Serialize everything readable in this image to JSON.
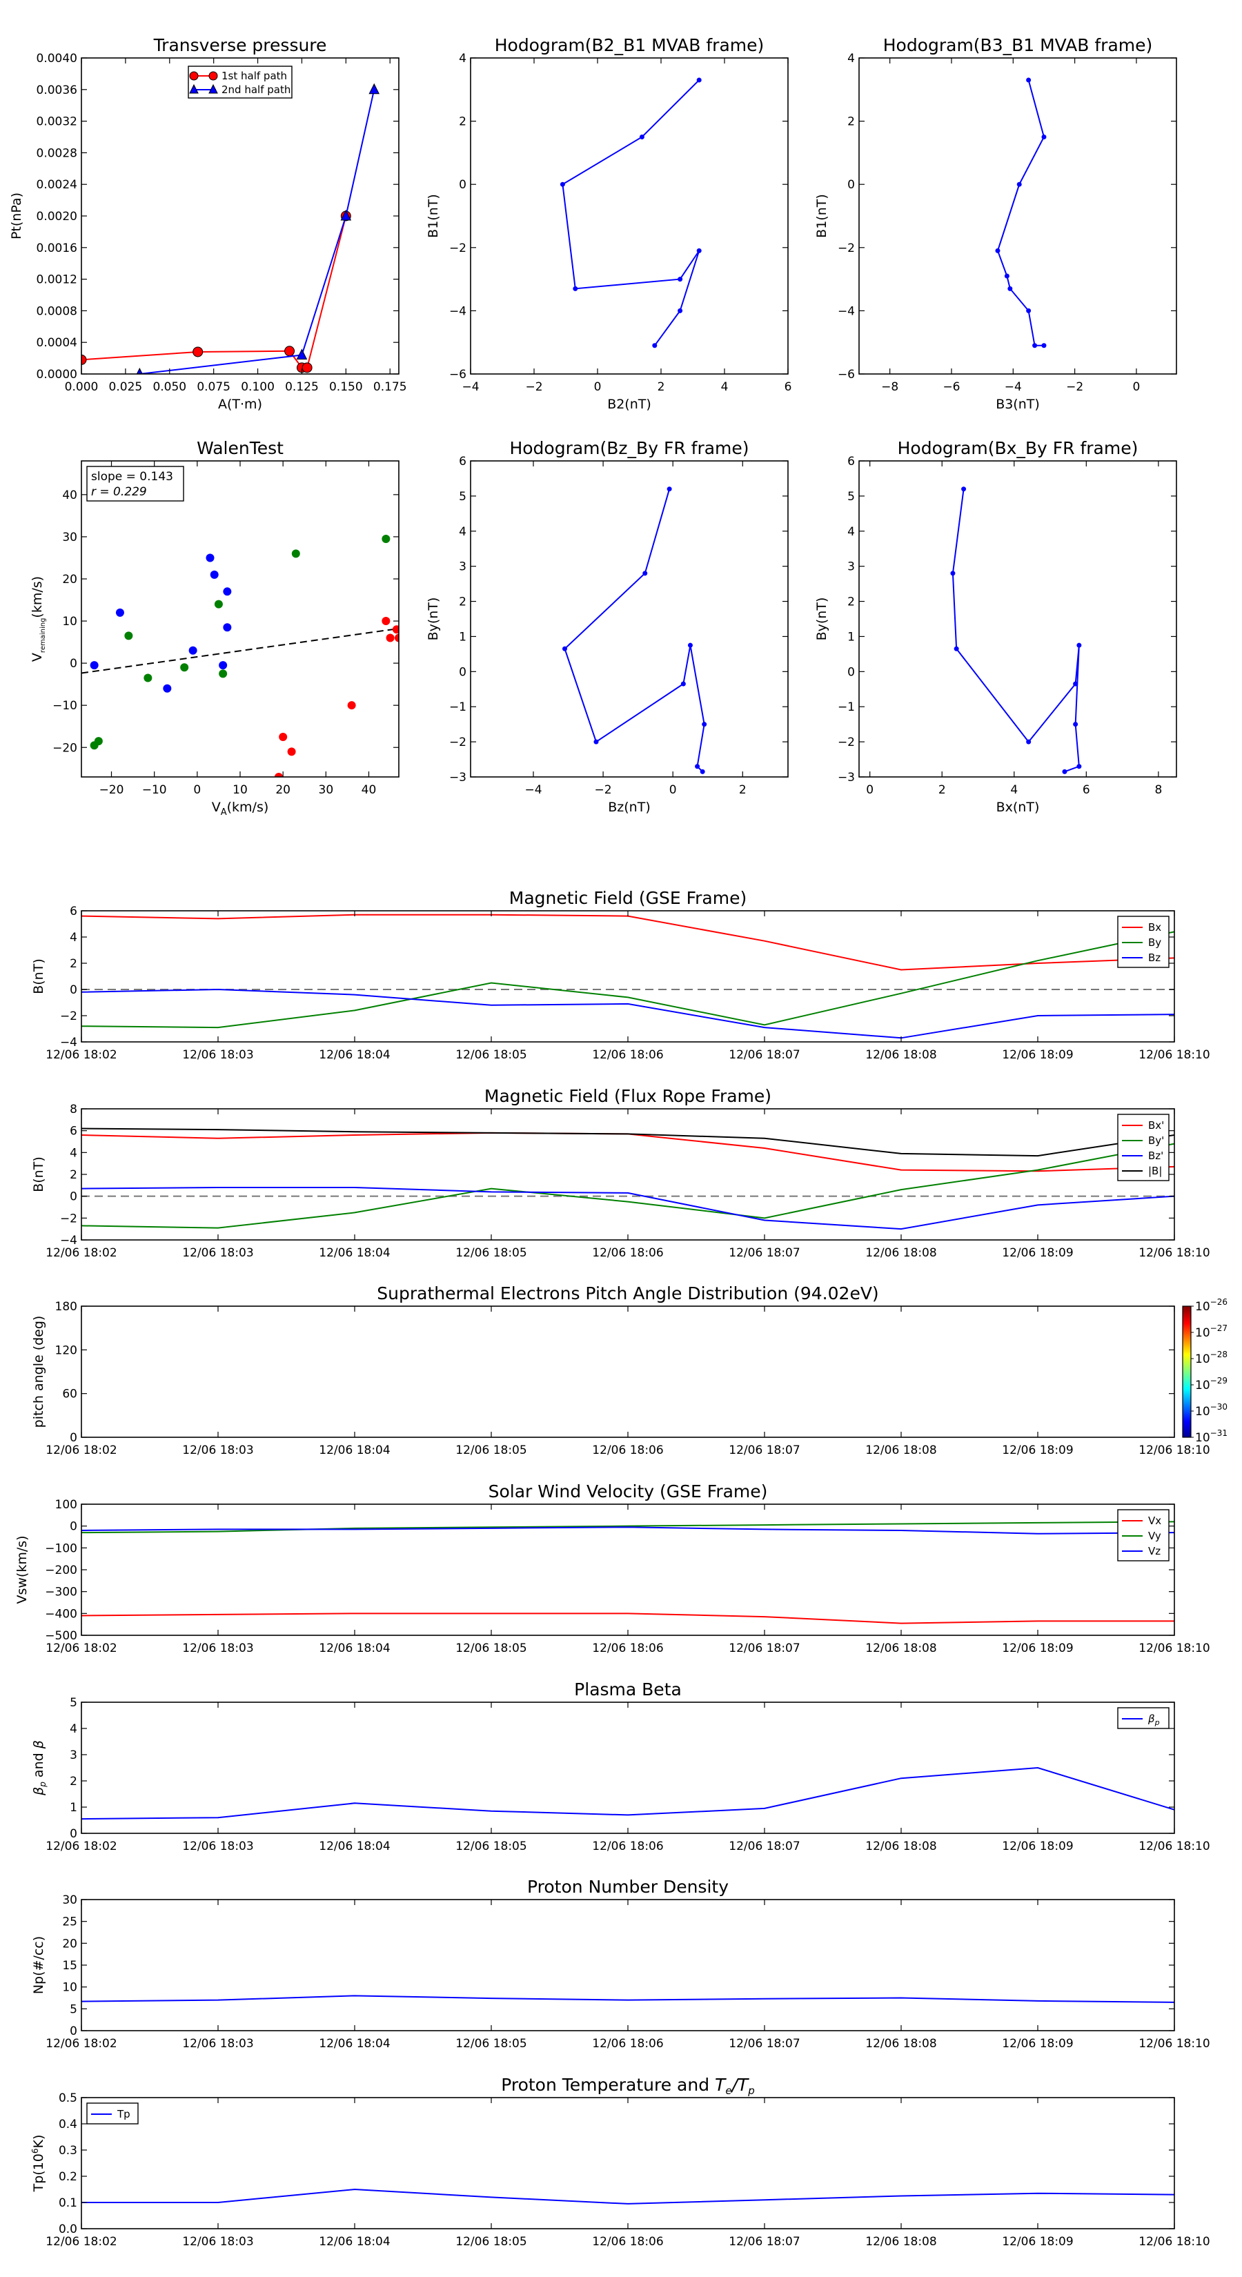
{
  "chart_data": [
    {
      "id": "tp",
      "type": "line",
      "title": "Transverse pressure",
      "xlabel": "A(T·m)",
      "ylabel": "Pt(nPa)",
      "xlim": [
        0,
        0.18
      ],
      "ylim": [
        0,
        0.004
      ],
      "xticks": [
        "0.000",
        "0.025",
        "0.050",
        "0.075",
        "0.100",
        "0.125",
        "0.150",
        "0.175"
      ],
      "yticks": [
        "0.0000",
        "0.0004",
        "0.0008",
        "0.0012",
        "0.0016",
        "0.0020",
        "0.0024",
        "0.0028",
        "0.0032",
        "0.0036",
        "0.0040"
      ],
      "legend": "upper center",
      "series": [
        {
          "name": "1st half path",
          "color": "#ff0000",
          "marker": "circle",
          "x": [
            0.0,
            0.066,
            0.118,
            0.125,
            0.128,
            0.15
          ],
          "y": [
            0.00018,
            0.00028,
            0.00029,
            8e-05,
            8e-05,
            0.002
          ]
        },
        {
          "name": "2nd half path",
          "color": "#0000ff",
          "marker": "triangle",
          "x": [
            0.033,
            0.125,
            0.15,
            0.166
          ],
          "y": [
            0.0,
            0.00024,
            0.002,
            0.0036
          ]
        }
      ]
    },
    {
      "id": "h1",
      "type": "line",
      "title": "Hodogram(B2_B1 MVAB frame)",
      "xlabel": "B2(nT)",
      "ylabel": "B1(nT)",
      "xlim": [
        -4,
        6
      ],
      "ylim": [
        -6,
        4
      ],
      "xticks": [
        "−4",
        "−2",
        "0",
        "2",
        "4",
        "6"
      ],
      "yticks": [
        "−6",
        "−4",
        "−2",
        "0",
        "2",
        "4"
      ],
      "series": [
        {
          "color": "#0000ff",
          "x": [
            3.2,
            1.4,
            -1.1,
            -0.7,
            2.6,
            3.2,
            2.6,
            1.8
          ],
          "y": [
            3.3,
            1.5,
            0.0,
            -3.3,
            -3.0,
            -2.1,
            -4.0,
            -5.1
          ]
        }
      ]
    },
    {
      "id": "h2",
      "type": "line",
      "title": "Hodogram(B3_B1 MVAB frame)",
      "xlabel": "B3(nT)",
      "ylabel": "B1(nT)",
      "xlim": [
        -9,
        1.3
      ],
      "ylim": [
        -6,
        4
      ],
      "xticks": [
        "−8",
        "−6",
        "−4",
        "−2",
        "0"
      ],
      "yticks": [
        "−6",
        "−4",
        "−2",
        "0",
        "2",
        "4"
      ],
      "series": [
        {
          "color": "#0000ff",
          "x": [
            -3.5,
            -3.0,
            -3.8,
            -4.5,
            -4.2,
            -4.1,
            -3.5,
            -3.3,
            -3.0
          ],
          "y": [
            3.3,
            1.5,
            0.0,
            -2.1,
            -2.9,
            -3.3,
            -4.0,
            -5.1,
            -5.1
          ]
        }
      ]
    },
    {
      "id": "walen",
      "type": "scatter",
      "title": "WalenTest",
      "xlabel": "V_A(km/s)",
      "ylabel": "V_remaining(km/s)",
      "xlim": [
        -27,
        47
      ],
      "ylim": [
        -27,
        48
      ],
      "xticks": [
        "−20",
        "−10",
        "0",
        "10",
        "20",
        "30",
        "40"
      ],
      "yticks": [
        "−20",
        "−10",
        "0",
        "10",
        "20",
        "30",
        "40"
      ],
      "annotation": [
        "slope = 0.143",
        "r = 0.229"
      ],
      "fit": {
        "slope": 0.143,
        "intercept": 1.5
      },
      "series": [
        {
          "color": "#0000ff",
          "x": [
            -24.0,
            -18.0,
            -7.0,
            -1.0,
            3.0,
            4.0,
            6.0,
            7.0,
            7.0
          ],
          "y": [
            -0.5,
            12.0,
            -6.0,
            3.0,
            25.0,
            21.0,
            -0.5,
            17.0,
            8.5
          ]
        },
        {
          "color": "#008000",
          "x": [
            -24.0,
            -23.0,
            -16.0,
            -11.5,
            -3.0,
            5.0,
            6.0,
            23.0,
            44.0
          ],
          "y": [
            -19.5,
            -18.5,
            6.5,
            -3.5,
            -1.0,
            14.0,
            -2.5,
            26.0,
            29.5
          ]
        },
        {
          "color": "#ff0000",
          "x": [
            19.0,
            20.0,
            22.0,
            36.0,
            44.0,
            45.0,
            46.5,
            47.0
          ],
          "y": [
            -27.0,
            -17.5,
            -21.0,
            -10.0,
            10.0,
            6.0,
            8.0,
            6.0
          ]
        }
      ]
    },
    {
      "id": "h3",
      "type": "line",
      "title": "Hodogram(Bz_By FR frame)",
      "xlabel": "Bz(nT)",
      "ylabel": "By(nT)",
      "xlim": [
        -5.8,
        3.3
      ],
      "ylim": [
        -3,
        6
      ],
      "xticks": [
        "−4",
        "−2",
        "0",
        "2"
      ],
      "yticks": [
        "−3",
        "−2",
        "−1",
        "0",
        "1",
        "2",
        "3",
        "4",
        "5",
        "6"
      ],
      "series": [
        {
          "color": "#0000ff",
          "x": [
            -0.1,
            -0.8,
            -3.1,
            -2.2,
            0.3,
            0.5,
            0.9,
            0.7,
            0.85
          ],
          "y": [
            5.2,
            2.8,
            0.65,
            -2.0,
            -0.35,
            0.75,
            -1.5,
            -2.7,
            -2.85
          ]
        }
      ]
    },
    {
      "id": "h4",
      "type": "line",
      "title": "Hodogram(Bx_By FR frame)",
      "xlabel": "Bx(nT)",
      "ylabel": "By(nT)",
      "xlim": [
        -0.3,
        8.5
      ],
      "ylim": [
        -3,
        6
      ],
      "xticks": [
        "0",
        "2",
        "4",
        "6",
        "8"
      ],
      "yticks": [
        "−3",
        "−2",
        "−1",
        "0",
        "1",
        "2",
        "3",
        "4",
        "5",
        "6"
      ],
      "series": [
        {
          "color": "#0000ff",
          "x": [
            2.6,
            2.3,
            2.4,
            4.4,
            5.7,
            5.8,
            5.7,
            5.8,
            5.4
          ],
          "y": [
            5.2,
            2.8,
            0.65,
            -2.0,
            -0.35,
            0.75,
            -1.5,
            -2.7,
            -2.85
          ]
        }
      ]
    },
    {
      "id": "gse",
      "type": "line",
      "title": "Magnetic Field (GSE Frame)",
      "ylabel": "B(nT)",
      "x": [
        "12/06 18:02",
        "12/06 18:03",
        "12/06 18:04",
        "12/06 18:05",
        "12/06 18:06",
        "12/06 18:07",
        "12/06 18:08",
        "12/06 18:09",
        "12/06 18:10"
      ],
      "ylim": [
        -4,
        6
      ],
      "yticks": [
        "−4",
        "−2",
        "0",
        "2",
        "4",
        "6"
      ],
      "zero_line": true,
      "legend": "upper right",
      "series": [
        {
          "name": "Bx",
          "color": "#ff0000",
          "values": [
            5.6,
            5.4,
            5.7,
            5.7,
            5.6,
            3.7,
            1.5,
            2.0,
            2.4
          ]
        },
        {
          "name": "By",
          "color": "#008000",
          "values": [
            -2.8,
            -2.9,
            -1.6,
            0.5,
            -0.6,
            -2.7,
            -0.3,
            2.2,
            4.4
          ]
        },
        {
          "name": "Bz",
          "color": "#0000ff",
          "values": [
            -0.2,
            0.0,
            -0.4,
            -1.2,
            -1.1,
            -2.9,
            -3.7,
            -2.0,
            -1.9
          ]
        }
      ]
    },
    {
      "id": "fr",
      "type": "line",
      "title": "Magnetic Field (Flux Rope Frame)",
      "ylabel": "B(nT)",
      "x": [
        "12/06 18:02",
        "12/06 18:03",
        "12/06 18:04",
        "12/06 18:05",
        "12/06 18:06",
        "12/06 18:07",
        "12/06 18:08",
        "12/06 18:09",
        "12/06 18:10"
      ],
      "ylim": [
        -4,
        8
      ],
      "yticks": [
        "−4",
        "−2",
        "0",
        "2",
        "4",
        "6",
        "8"
      ],
      "zero_line": true,
      "legend": "upper right",
      "series": [
        {
          "name": "Bx'",
          "color": "#ff0000",
          "values": [
            5.6,
            5.3,
            5.6,
            5.8,
            5.7,
            4.4,
            2.4,
            2.3,
            2.7
          ]
        },
        {
          "name": "By'",
          "color": "#008000",
          "values": [
            -2.7,
            -2.9,
            -1.5,
            0.7,
            -0.5,
            -2.0,
            0.6,
            2.4,
            4.8
          ]
        },
        {
          "name": "Bz'",
          "color": "#0000ff",
          "values": [
            0.7,
            0.8,
            0.8,
            0.4,
            0.3,
            -2.2,
            -3.0,
            -0.8,
            0.0
          ]
        },
        {
          "name": "|B|",
          "color": "#000000",
          "values": [
            6.2,
            6.1,
            5.9,
            5.8,
            5.7,
            5.3,
            3.9,
            3.7,
            5.6
          ]
        }
      ]
    },
    {
      "id": "pad",
      "type": "heatmap",
      "title": "Suprathermal Electrons Pitch Angle Distribution (94.02eV)",
      "ylabel": "pitch angle (deg)",
      "x": [
        "12/06 18:02",
        "12/06 18:03",
        "12/06 18:04",
        "12/06 18:05",
        "12/06 18:06",
        "12/06 18:07",
        "12/06 18:08",
        "12/06 18:09",
        "12/06 18:10"
      ],
      "ylim": [
        0,
        180
      ],
      "yticks": [
        "0",
        "60",
        "120",
        "180"
      ],
      "colorbar": {
        "ticks_base": [
          "10",
          "10",
          "10",
          "10",
          "10",
          "10"
        ],
        "ticks_exp": [
          "−26",
          "−27",
          "−28",
          "−29",
          "−30",
          "−31"
        ]
      }
    },
    {
      "id": "vsw",
      "type": "line",
      "title": "Solar Wind Velocity (GSE Frame)",
      "ylabel": "Vsw(km/s)",
      "x": [
        "12/06 18:02",
        "12/06 18:03",
        "12/06 18:04",
        "12/06 18:05",
        "12/06 18:06",
        "12/06 18:07",
        "12/06 18:08",
        "12/06 18:09",
        "12/06 18:10"
      ],
      "ylim": [
        -500,
        100
      ],
      "yticks": [
        "−500",
        "−400",
        "−300",
        "−200",
        "−100",
        "0",
        "100"
      ],
      "legend": "upper right",
      "series": [
        {
          "name": "Vx",
          "color": "#ff0000",
          "values": [
            -410,
            -405,
            -400,
            -400,
            -400,
            -415,
            -445,
            -435,
            -435
          ]
        },
        {
          "name": "Vy",
          "color": "#008000",
          "values": [
            -30,
            -25,
            -10,
            -5,
            0,
            5,
            10,
            15,
            20
          ]
        },
        {
          "name": "Vz",
          "color": "#0000ff",
          "values": [
            -20,
            -15,
            -15,
            -10,
            -5,
            -15,
            -20,
            -35,
            -30
          ]
        }
      ]
    },
    {
      "id": "beta",
      "type": "line",
      "title": "Plasma Beta",
      "ylabel": "β_p and β",
      "x": [
        "12/06 18:02",
        "12/06 18:03",
        "12/06 18:04",
        "12/06 18:05",
        "12/06 18:06",
        "12/06 18:07",
        "12/06 18:08",
        "12/06 18:09",
        "12/06 18:10"
      ],
      "ylim": [
        0,
        5
      ],
      "yticks": [
        "0",
        "1",
        "2",
        "3",
        "4",
        "5"
      ],
      "legend": "upper right",
      "series": [
        {
          "name": "β_p",
          "color": "#0000ff",
          "values": [
            0.55,
            0.6,
            1.15,
            0.85,
            0.7,
            0.95,
            2.1,
            2.5,
            0.9
          ]
        }
      ]
    },
    {
      "id": "np",
      "type": "line",
      "title": "Proton Number Density",
      "ylabel": "Np(#/cc)",
      "x": [
        "12/06 18:02",
        "12/06 18:03",
        "12/06 18:04",
        "12/06 18:05",
        "12/06 18:06",
        "12/06 18:07",
        "12/06 18:08",
        "12/06 18:09",
        "12/06 18:10"
      ],
      "ylim": [
        0,
        30
      ],
      "yticks": [
        "0",
        "5",
        "10",
        "15",
        "20",
        "25",
        "30"
      ],
      "series": [
        {
          "color": "#0000ff",
          "values": [
            6.7,
            7.0,
            8.0,
            7.4,
            7.0,
            7.3,
            7.5,
            6.8,
            6.5
          ]
        }
      ]
    },
    {
      "id": "temp",
      "type": "line",
      "title": "Proton Temperature and Te/Tp",
      "ylabel": "Tp(10^6K)",
      "x": [
        "12/06 18:02",
        "12/06 18:03",
        "12/06 18:04",
        "12/06 18:05",
        "12/06 18:06",
        "12/06 18:07",
        "12/06 18:08",
        "12/06 18:09",
        "12/06 18:10"
      ],
      "ylim": [
        0,
        0.5
      ],
      "yticks": [
        "0.0",
        "0.1",
        "0.2",
        "0.3",
        "0.4",
        "0.5"
      ],
      "legend": "upper left",
      "series": [
        {
          "name": "Tp",
          "color": "#0000ff",
          "values": [
            0.1,
            0.1,
            0.15,
            0.12,
            0.095,
            0.11,
            0.125,
            0.135,
            0.13
          ]
        }
      ]
    }
  ]
}
